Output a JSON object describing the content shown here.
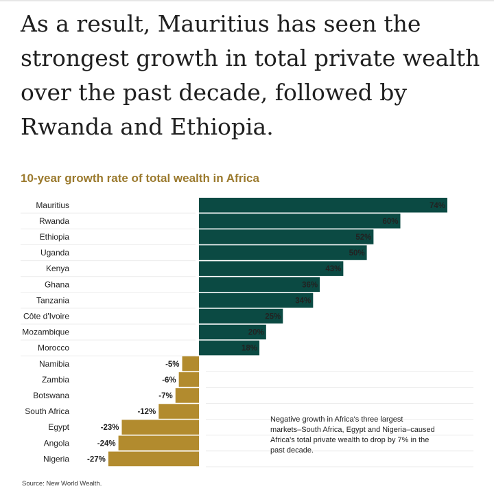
{
  "intro_text": "As a result, Mauritius has seen the strongest growth in total private wealth over the past decade, followed by Rwanda and Ethiopia.",
  "colors": {
    "positive": "#0b4a43",
    "negative": "#b28b2e",
    "title": "#9b7a2e"
  },
  "chart_data": {
    "type": "bar",
    "orientation": "horizontal",
    "title": "10-year growth rate of total wealth in Africa",
    "categories": [
      "Mauritius",
      "Rwanda",
      "Ethiopia",
      "Uganda",
      "Kenya",
      "Ghana",
      "Tanzania",
      "Côte d'Ivoire",
      "Mozambique",
      "Morocco",
      "Namibia",
      "Zambia",
      "Botswana",
      "South Africa",
      "Egypt",
      "Angola",
      "Nigeria"
    ],
    "values": [
      74,
      60,
      52,
      50,
      43,
      36,
      34,
      25,
      20,
      18,
      -5,
      -6,
      -7,
      -12,
      -23,
      -24,
      -27
    ],
    "value_labels": [
      "74%",
      "60%",
      "52%",
      "50%",
      "43%",
      "36%",
      "34%",
      "25%",
      "20%",
      "18%",
      "-5%",
      "-6%",
      "-7%",
      "-12%",
      "-23%",
      "-24%",
      "-27%"
    ],
    "xlim": [
      -27,
      74
    ],
    "annotation": "Negative growth in Africa's three largest markets–South Africa, Egypt and Nigeria–caused Africa's total private wealth to drop by 7% in the past decade.",
    "source": "Source: New World Wealth."
  }
}
